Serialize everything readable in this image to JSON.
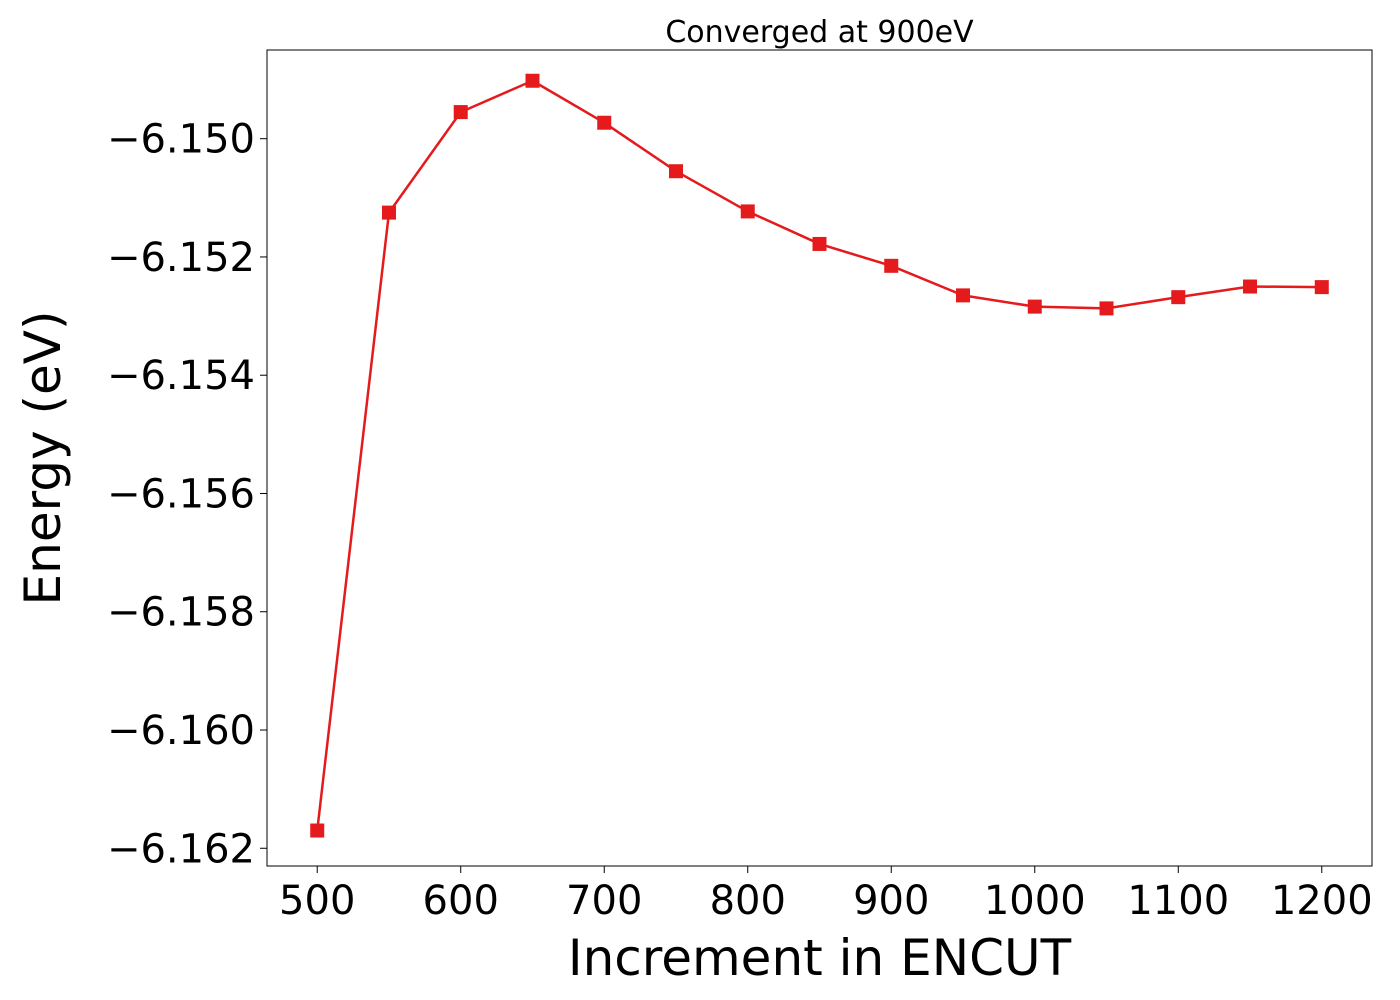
{
  "chart_data": {
    "type": "line",
    "title": "Converged at 900eV",
    "xlabel": "Increment in ENCUT",
    "ylabel": "Energy (eV)",
    "xlim": [
      465,
      1235
    ],
    "ylim": [
      -6.1623,
      -6.1485
    ],
    "x_ticks": [
      500,
      600,
      700,
      800,
      900,
      1000,
      1100,
      1200
    ],
    "x_tick_labels": [
      "500",
      "600",
      "700",
      "800",
      "900",
      "1000",
      "1100",
      "1200"
    ],
    "y_ticks": [
      -6.15,
      -6.152,
      -6.154,
      -6.156,
      -6.158,
      -6.16,
      -6.162
    ],
    "y_tick_labels": [
      "−6.150",
      "−6.152",
      "−6.154",
      "−6.156",
      "−6.158",
      "−6.160",
      "−6.162"
    ],
    "grid": false,
    "legend": "none",
    "series": [
      {
        "color": "#e41a1c",
        "marker": "square",
        "x": [
          500,
          550,
          600,
          650,
          700,
          750,
          800,
          850,
          900,
          950,
          1000,
          1050,
          1100,
          1150,
          1200
        ],
        "y": [
          -6.1617,
          -6.15125,
          -6.14955,
          -6.14902,
          -6.14973,
          -6.15055,
          -6.15123,
          -6.15178,
          -6.15215,
          -6.15265,
          -6.15284,
          -6.15287,
          -6.15268,
          -6.1525,
          -6.15251
        ]
      }
    ]
  }
}
